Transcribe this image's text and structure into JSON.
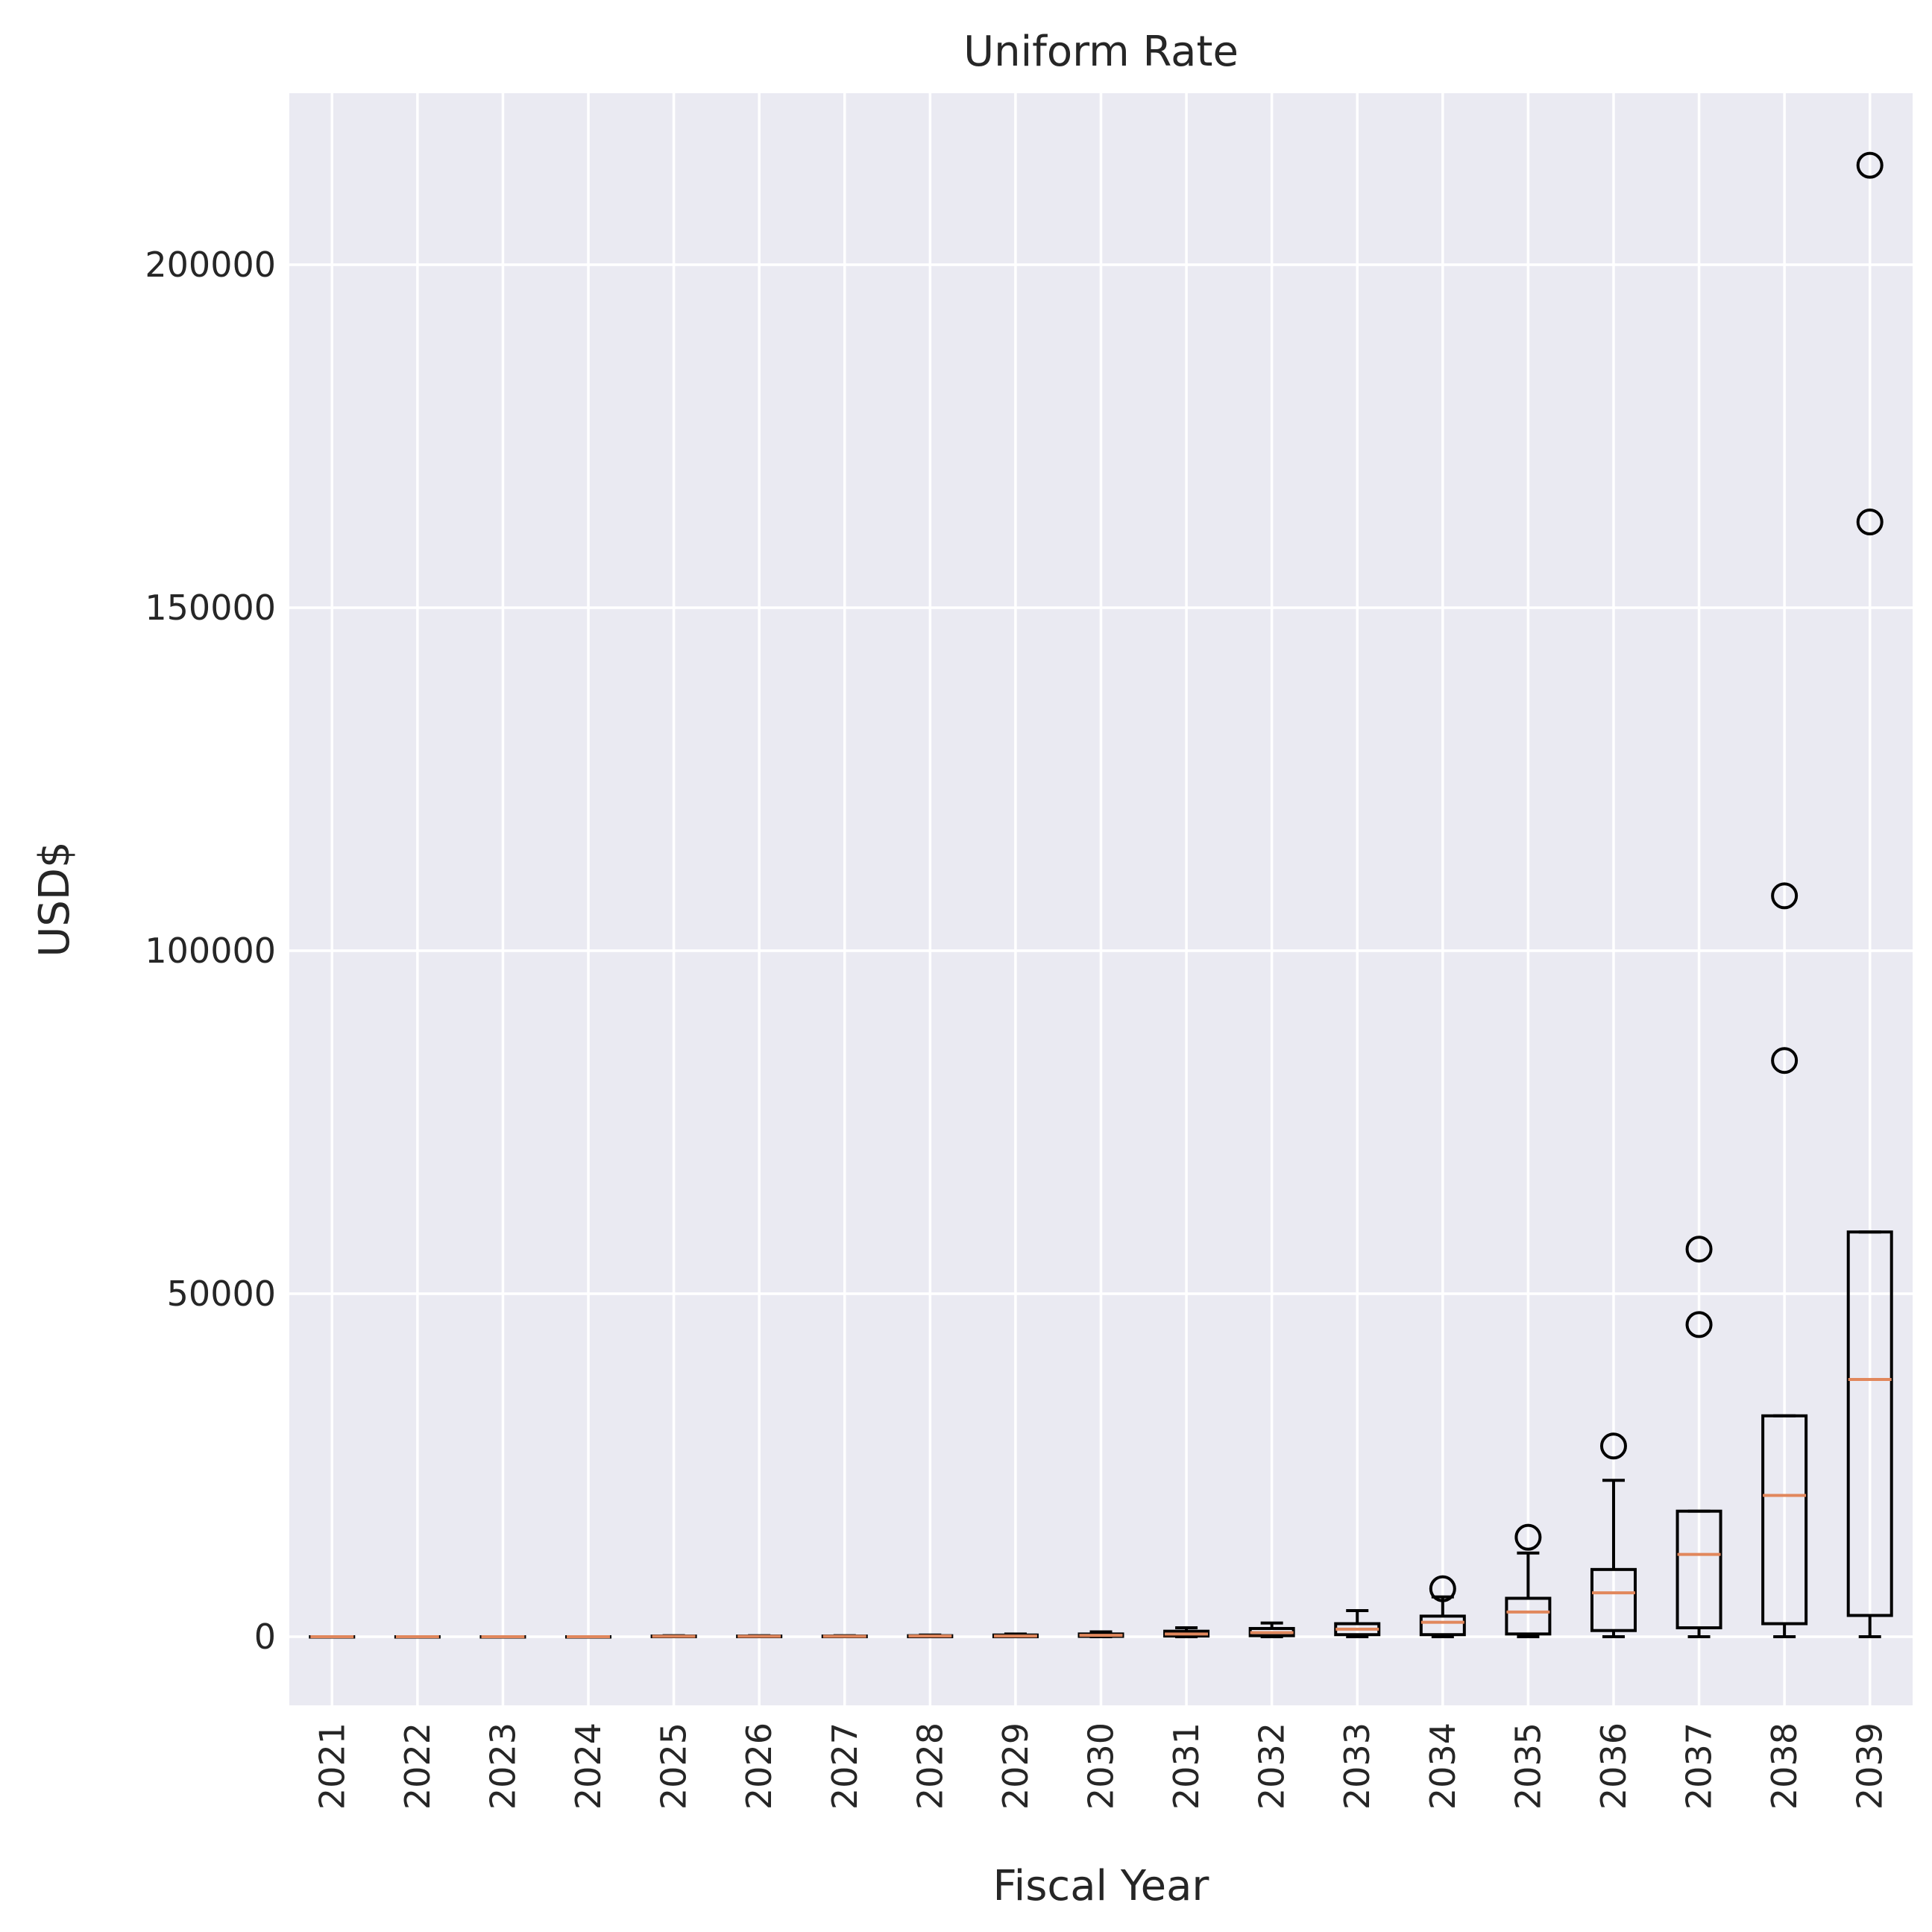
{
  "chart_data": {
    "type": "box",
    "title": "Uniform Rate",
    "xlabel": "Fiscal Year",
    "ylabel": "USD$",
    "ylim": [
      -10000,
      225000
    ],
    "yticks": [
      0,
      50000,
      100000,
      150000,
      200000
    ],
    "grid": true,
    "categories": [
      "2021",
      "2022",
      "2023",
      "2024",
      "2025",
      "2026",
      "2027",
      "2028",
      "2029",
      "2030",
      "2031",
      "2032",
      "2033",
      "2034",
      "2035",
      "2036",
      "2037",
      "2038",
      "2039"
    ],
    "boxes": [
      {
        "whisker_low": 0,
        "q1": 0,
        "median": 0,
        "q3": 0,
        "whisker_high": 0,
        "outliers": []
      },
      {
        "whisker_low": 0,
        "q1": 0,
        "median": 0,
        "q3": 0,
        "whisker_high": 0,
        "outliers": []
      },
      {
        "whisker_low": 0,
        "q1": 0,
        "median": 0,
        "q3": 0,
        "whisker_high": 0,
        "outliers": []
      },
      {
        "whisker_low": 0,
        "q1": 0,
        "median": 0,
        "q3": 0,
        "whisker_high": 0,
        "outliers": []
      },
      {
        "whisker_low": 0,
        "q1": 0,
        "median": 50,
        "q3": 100,
        "whisker_high": 150,
        "outliers": []
      },
      {
        "whisker_low": 0,
        "q1": 0,
        "median": 50,
        "q3": 100,
        "whisker_high": 150,
        "outliers": []
      },
      {
        "whisker_low": 0,
        "q1": 0,
        "median": 50,
        "q3": 100,
        "whisker_high": 150,
        "outliers": []
      },
      {
        "whisker_low": 0,
        "q1": 0,
        "median": 100,
        "q3": 150,
        "whisker_high": 250,
        "outliers": []
      },
      {
        "whisker_low": 0,
        "q1": 0,
        "median": 100,
        "q3": 250,
        "whisker_high": 400,
        "outliers": []
      },
      {
        "whisker_low": 0,
        "q1": 50,
        "median": 200,
        "q3": 400,
        "whisker_high": 700,
        "outliers": []
      },
      {
        "whisker_low": 0,
        "q1": 100,
        "median": 400,
        "q3": 800,
        "whisker_high": 1300,
        "outliers": []
      },
      {
        "whisker_low": 0,
        "q1": 150,
        "median": 600,
        "q3": 1200,
        "whisker_high": 2000,
        "outliers": []
      },
      {
        "whisker_low": 0,
        "q1": 300,
        "median": 1100,
        "q3": 1900,
        "whisker_high": 3800,
        "outliers": []
      },
      {
        "whisker_low": 0,
        "q1": 300,
        "median": 2100,
        "q3": 3000,
        "whisker_high": 5800,
        "outliers": [
          7000
        ]
      },
      {
        "whisker_low": 0,
        "q1": 400,
        "median": 3600,
        "q3": 5600,
        "whisker_high": 12200,
        "outliers": [
          14500
        ]
      },
      {
        "whisker_low": 0,
        "q1": 900,
        "median": 6400,
        "q3": 9800,
        "whisker_high": 22800,
        "outliers": [
          27800
        ]
      },
      {
        "whisker_low": 0,
        "q1": 1300,
        "median": 12000,
        "q3": 18300,
        "whisker_high": 18300,
        "outliers": [
          45500,
          56500
        ]
      },
      {
        "whisker_low": 0,
        "q1": 1900,
        "median": 20600,
        "q3": 32200,
        "whisker_high": 32200,
        "outliers": [
          84000,
          108000
        ]
      },
      {
        "whisker_low": 0,
        "q1": 3100,
        "median": 37500,
        "q3": 59000,
        "whisker_high": 59000,
        "outliers": [
          162500,
          214500
        ]
      }
    ]
  }
}
